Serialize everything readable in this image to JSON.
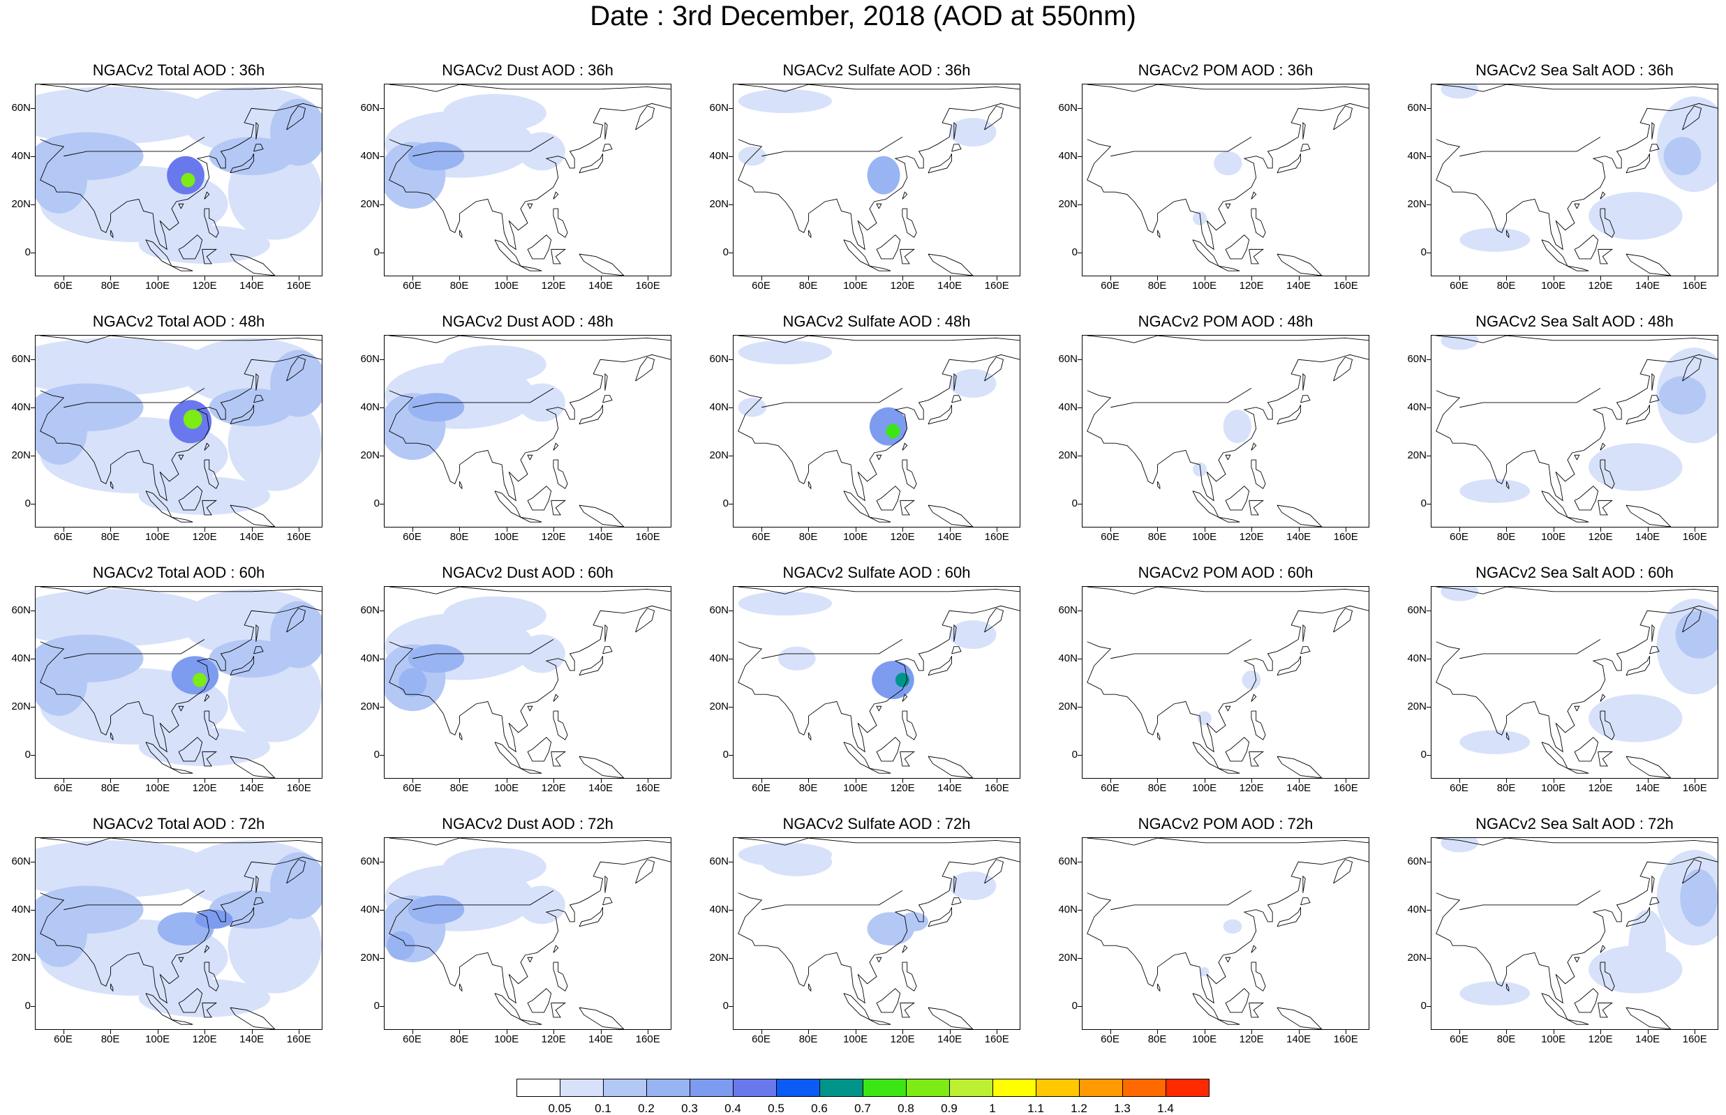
{
  "title": "Date : 3rd December, 2018 (AOD at 550nm)",
  "colors": {
    "scale": [
      "#ffffff",
      "#d7e1fa",
      "#b4c8f5",
      "#98b4f2",
      "#7d9cf0",
      "#6a78ee",
      "#0b5cf5",
      "#00948a",
      "#3ce614",
      "#7deb14",
      "#bdf032",
      "#ffff00",
      "#ffc800",
      "#ff9a00",
      "#ff6a00",
      "#ff2a00"
    ],
    "coast": "#000000"
  },
  "colorbar": {
    "labels": [
      "0.05",
      "0.1",
      "0.2",
      "0.3",
      "0.4",
      "0.5",
      "0.6",
      "0.7",
      "0.8",
      "0.9",
      "1",
      "1.1",
      "1.2",
      "1.3",
      "1.4"
    ]
  },
  "axes": {
    "y_labels": [
      "60N",
      "40N",
      "20N",
      "0"
    ],
    "x_labels": [
      "60E",
      "80E",
      "100E",
      "120E",
      "140E",
      "160E"
    ]
  },
  "panels": [
    {
      "title": "NGACv2 Total AOD : 36h",
      "species": "total",
      "hour": 36
    },
    {
      "title": "NGACv2 Dust AOD : 36h",
      "species": "dust",
      "hour": 36
    },
    {
      "title": "NGACv2 Sulfate AOD : 36h",
      "species": "sulfate",
      "hour": 36
    },
    {
      "title": "NGACv2 POM AOD : 36h",
      "species": "pom",
      "hour": 36
    },
    {
      "title": "NGACv2 Sea Salt AOD : 36h",
      "species": "seasalt",
      "hour": 36
    },
    {
      "title": "NGACv2 Total AOD : 48h",
      "species": "total",
      "hour": 48
    },
    {
      "title": "NGACv2 Dust AOD : 48h",
      "species": "dust",
      "hour": 48
    },
    {
      "title": "NGACv2 Sulfate AOD : 48h",
      "species": "sulfate",
      "hour": 48
    },
    {
      "title": "NGACv2 POM AOD : 48h",
      "species": "pom",
      "hour": 48
    },
    {
      "title": "NGACv2 Sea Salt AOD : 48h",
      "species": "seasalt",
      "hour": 48
    },
    {
      "title": "NGACv2 Total AOD : 60h",
      "species": "total",
      "hour": 60
    },
    {
      "title": "NGACv2 Dust AOD : 60h",
      "species": "dust",
      "hour": 60
    },
    {
      "title": "NGACv2 Sulfate AOD : 60h",
      "species": "sulfate",
      "hour": 60
    },
    {
      "title": "NGACv2 POM AOD : 60h",
      "species": "pom",
      "hour": 60
    },
    {
      "title": "NGACv2 Sea Salt AOD : 60h",
      "species": "seasalt",
      "hour": 60
    },
    {
      "title": "NGACv2 Total AOD : 72h",
      "species": "total",
      "hour": 72
    },
    {
      "title": "NGACv2 Dust AOD : 72h",
      "species": "dust",
      "hour": 72
    },
    {
      "title": "NGACv2 Sulfate AOD : 72h",
      "species": "sulfate",
      "hour": 72
    },
    {
      "title": "NGACv2 POM AOD : 72h",
      "species": "pom",
      "hour": 72
    },
    {
      "title": "NGACv2 Sea Salt  AOD : 72h",
      "species": "seasalt",
      "hour": 72
    }
  ]
}
